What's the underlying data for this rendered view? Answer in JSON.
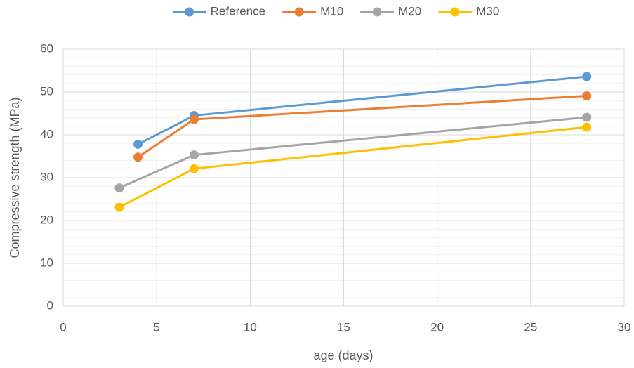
{
  "chart_data": {
    "type": "line",
    "x_label": "age (days)",
    "y_label": "Compressive strength (MPa)",
    "xlim": [
      0,
      30
    ],
    "xticks": [
      0,
      5,
      10,
      15,
      20,
      25,
      30
    ],
    "ylim": [
      0,
      60
    ],
    "yticks": [
      0,
      10,
      20,
      30,
      40,
      50,
      60
    ],
    "grid": true,
    "minor_grid": true,
    "legend": "top",
    "series": [
      {
        "name": "Reference",
        "color": "#5b9bd5",
        "x": [
          4,
          7,
          28
        ],
        "values": [
          37.8,
          44.5,
          53.6
        ]
      },
      {
        "name": "M10",
        "color": "#ed7d31",
        "x": [
          4,
          7,
          28
        ],
        "values": [
          34.8,
          43.6,
          49.1
        ]
      },
      {
        "name": "M20",
        "color": "#a5a5a5",
        "x": [
          3,
          7,
          28
        ],
        "values": [
          27.6,
          35.3,
          44.1
        ]
      },
      {
        "name": "M30",
        "color": "#ffc000",
        "x": [
          3,
          7,
          28
        ],
        "values": [
          23.1,
          32.1,
          41.8
        ]
      }
    ]
  }
}
